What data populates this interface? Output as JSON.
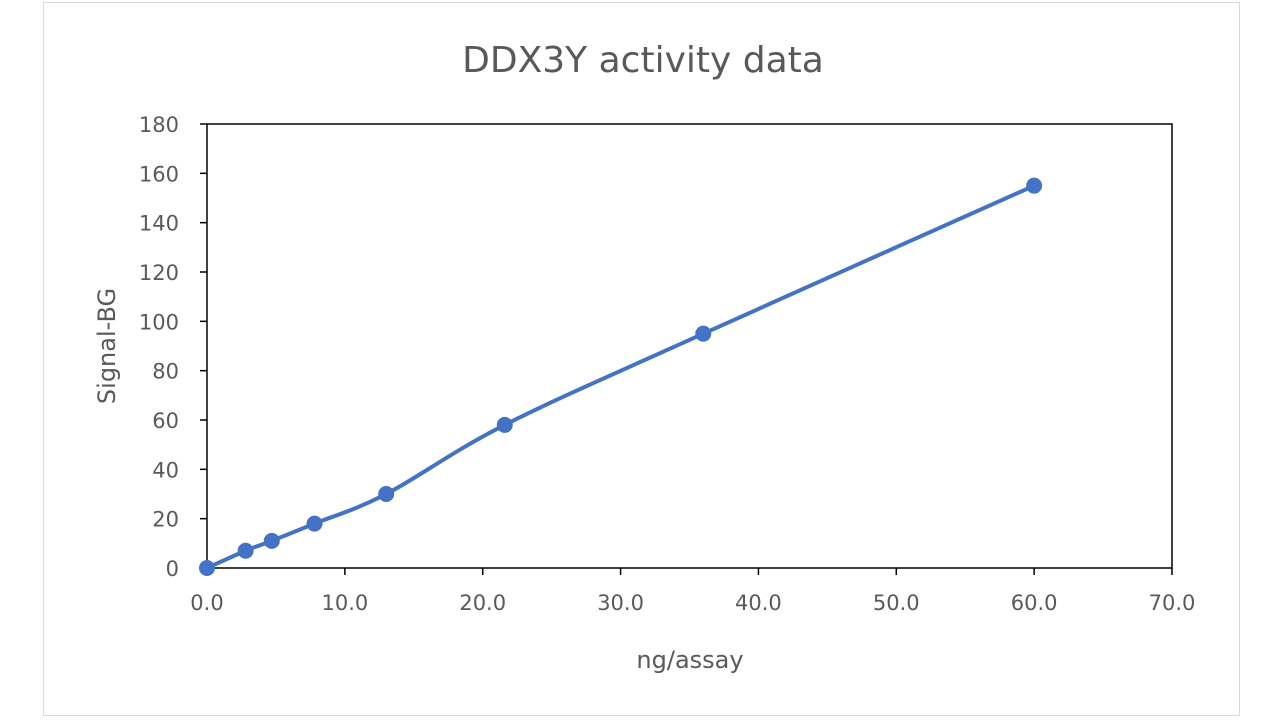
{
  "chart_data": {
    "type": "line",
    "title": "DDX3Y activity data",
    "xlabel": "ng/assay",
    "ylabel": "Signal-BG",
    "xlim": [
      0,
      70
    ],
    "ylim": [
      0,
      180
    ],
    "x_ticks": [
      "0.0",
      "10.0",
      "20.0",
      "30.0",
      "40.0",
      "50.0",
      "60.0",
      "70.0"
    ],
    "y_ticks": [
      "0",
      "20",
      "40",
      "60",
      "80",
      "100",
      "120",
      "140",
      "160",
      "180"
    ],
    "grid": false,
    "smoothed": true,
    "markers": true,
    "series_color": "#4472c4",
    "series": [
      {
        "x": [
          0,
          2.8,
          4.7,
          7.8,
          13.0,
          21.6,
          36.0,
          60.0
        ],
        "y": [
          0,
          7,
          11,
          18,
          30,
          58,
          95,
          155
        ]
      }
    ]
  }
}
